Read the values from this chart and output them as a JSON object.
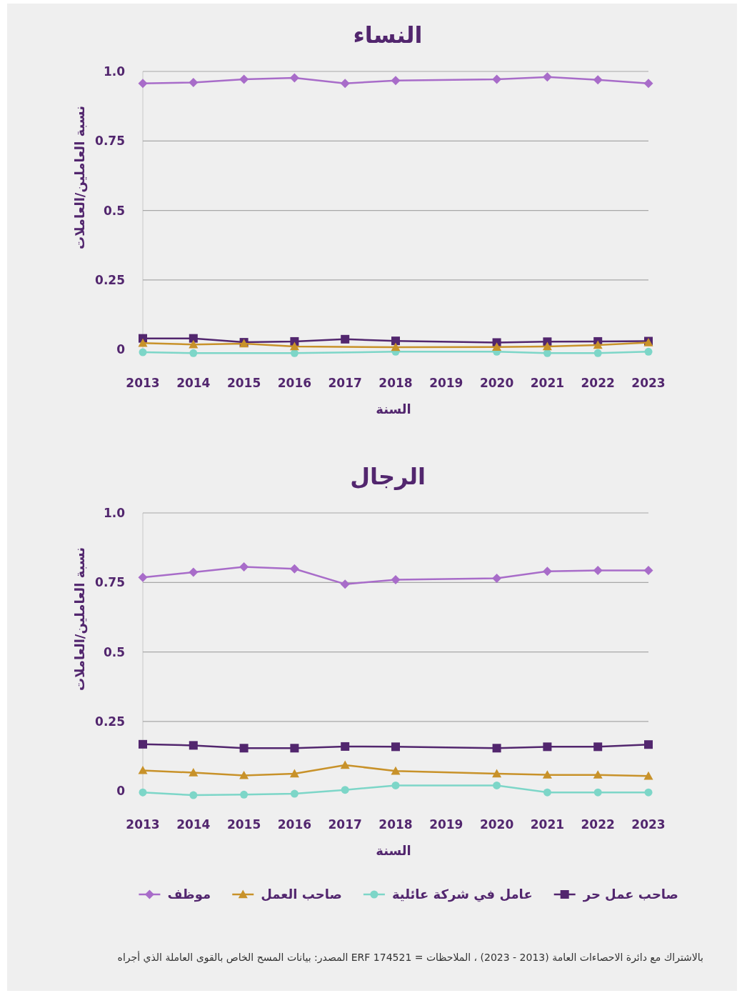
{
  "chart_data": [
    {
      "type": "line",
      "title": "النساء",
      "xlabel": "السنة",
      "ylabel": "نسبة العاملين/العاملات",
      "x": [
        2013,
        2014,
        2015,
        2016,
        2017,
        2018,
        2020,
        2021,
        2022,
        2023
      ],
      "xlim": [
        2013,
        2023
      ],
      "xticks": [
        2013,
        2014,
        2015,
        2016,
        2017,
        2018,
        2019,
        2020,
        2021,
        2022,
        2023
      ],
      "ylim": [
        -0.02,
        1.0
      ],
      "yticks": [
        0,
        0.25,
        0.5,
        0.75,
        {
          "value": 1,
          "label": "1.0"
        }
      ],
      "grid": "y",
      "legend": false,
      "series": [
        {
          "color": "#a86cc9",
          "marker": "diamond",
          "values": [
            0.957,
            0.96,
            0.972,
            0.977,
            0.957,
            0.967,
            0.972,
            0.98,
            0.97,
            0.957
          ]
        },
        {
          "color": "#7dd6c8",
          "marker": "circle",
          "values": [
            -0.01,
            -0.013,
            null,
            -0.013,
            null,
            -0.008,
            -0.008,
            -0.013,
            -0.013,
            -0.008
          ]
        },
        {
          "color": "#52266e",
          "marker": "square",
          "values": [
            0.04,
            0.04,
            0.026,
            0.029,
            0.037,
            0.031,
            0.025,
            0.028,
            0.029,
            0.03
          ]
        },
        {
          "color": "#c8922a",
          "marker": "triangle",
          "values": [
            0.023,
            0.018,
            0.021,
            0.011,
            null,
            0.008,
            0.009,
            0.011,
            0.016,
            0.025
          ]
        }
      ]
    },
    {
      "type": "line",
      "title": "الرجال",
      "xlabel": "السنة",
      "ylabel": "نسبة العاملين/العاملات",
      "x": [
        2013,
        2014,
        2015,
        2016,
        2017,
        2018,
        2020,
        2021,
        2022,
        2023
      ],
      "xlim": [
        2013,
        2023
      ],
      "xticks": [
        2013,
        2014,
        2015,
        2016,
        2017,
        2018,
        2019,
        2020,
        2021,
        2022,
        2023
      ],
      "ylim": [
        -0.02,
        1.0
      ],
      "yticks": [
        0,
        0.25,
        0.5,
        0.75,
        {
          "value": 1,
          "label": "1.0"
        }
      ],
      "grid": "y",
      "legend": "bottom",
      "annotations": [
        "بالاشتراك مع دائرة الاحصاءات العامة (2013 - 2023) ، الملاحظات = ERF 174521 المصدر: بيانات المسح الخاص بالقوى العاملة الذي أجراه"
      ],
      "series": [
        {
          "name": "صاحب عمل حر",
          "color": "#52266e",
          "marker": "square",
          "values": [
            0.168,
            0.164,
            0.154,
            0.154,
            0.16,
            0.159,
            0.154,
            0.159,
            0.159,
            0.167
          ]
        },
        {
          "name": "عامل في شركة عائلية",
          "color": "#7dd6c8",
          "marker": "circle",
          "values": [
            -0.005,
            -0.015,
            -0.013,
            -0.01,
            0.004,
            0.02,
            0.02,
            -0.005,
            -0.005,
            -0.005
          ]
        },
        {
          "name": "صاحب العمل",
          "color": "#c8922a",
          "marker": "triangle",
          "values": [
            0.074,
            0.066,
            0.056,
            0.062,
            0.093,
            0.072,
            0.062,
            0.058,
            0.058,
            0.054
          ]
        },
        {
          "name": "موظف",
          "color": "#a86cc9",
          "marker": "diamond",
          "values": [
            0.768,
            0.787,
            0.806,
            0.799,
            0.744,
            0.76,
            0.765,
            0.79,
            0.793,
            0.793
          ]
        }
      ]
    }
  ]
}
